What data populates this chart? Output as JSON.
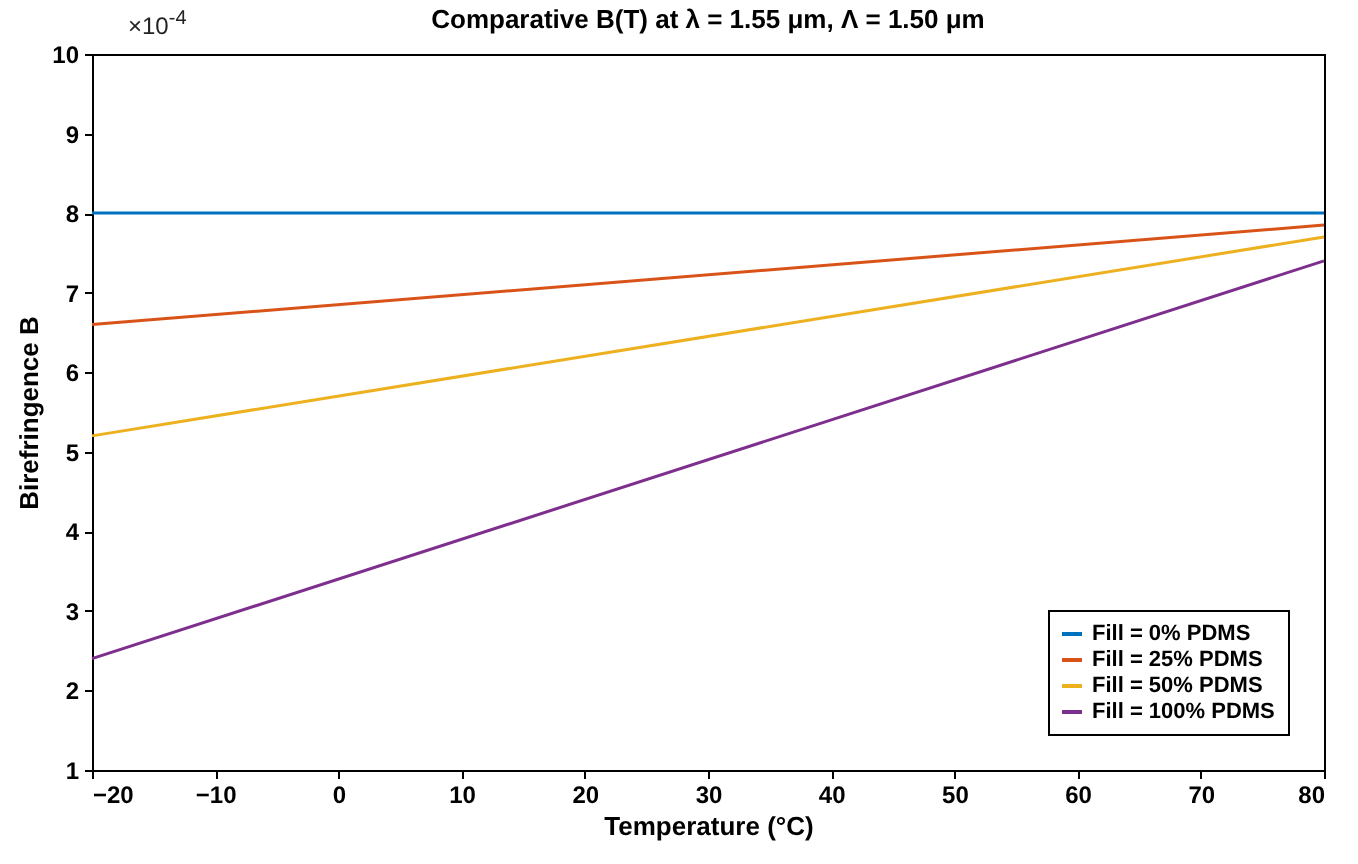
{
  "chart_data": {
    "type": "line",
    "title": "Comparative B(T) at λ = 1.55 μm, Λ = 1.50 μm",
    "xlabel": "Temperature (°C)",
    "ylabel": "Birefringence B",
    "x": [
      -20,
      80
    ],
    "series": [
      {
        "name": "Fill = 0% PDMS",
        "color": "#0072bd",
        "values": [
          8.0,
          8.0
        ]
      },
      {
        "name": "Fill = 25% PDMS",
        "color": "#d95319",
        "values": [
          6.6,
          7.85
        ]
      },
      {
        "name": "Fill = 50% PDMS",
        "color": "#edb120",
        "values": [
          5.2,
          7.7
        ]
      },
      {
        "name": "Fill = 100% PDMS",
        "color": "#7e2f8e",
        "values": [
          2.4,
          7.4
        ]
      }
    ],
    "xlim": [
      -20,
      80
    ],
    "xticks": [
      -20,
      -10,
      0,
      10,
      20,
      30,
      40,
      50,
      60,
      70,
      80
    ],
    "ylim": [
      1,
      10
    ],
    "yticks": [
      1,
      2,
      3,
      4,
      5,
      6,
      7,
      8,
      9,
      10
    ],
    "legend": "bottom right",
    "annotations": [
      "×10$^{-4}$"
    ]
  }
}
